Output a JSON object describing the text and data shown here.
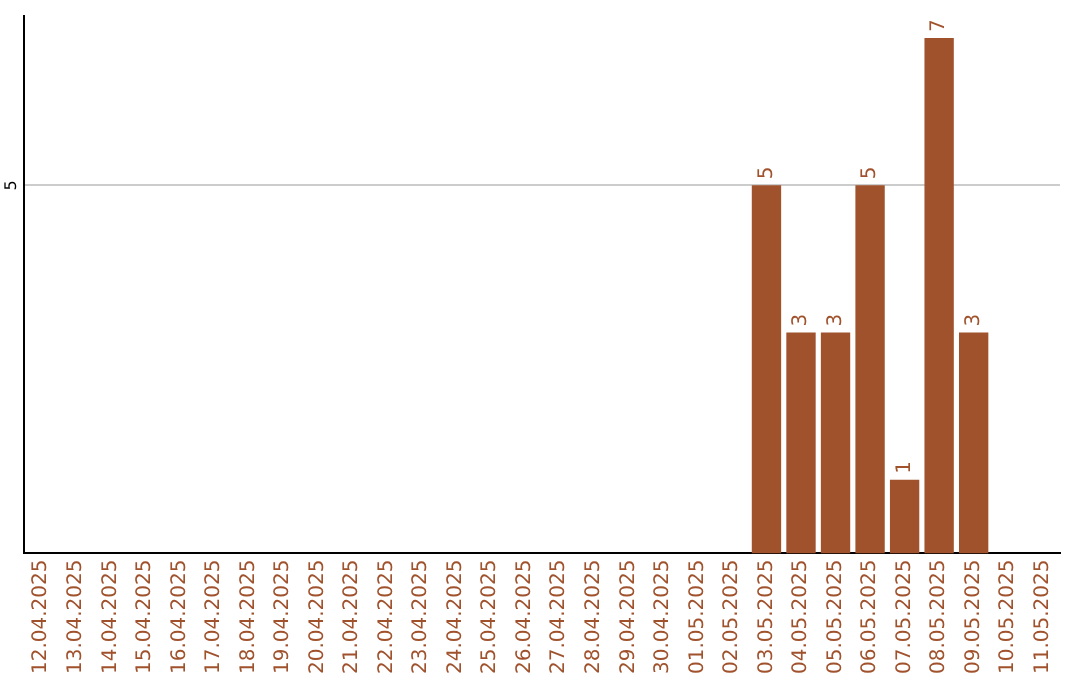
{
  "chart_data": {
    "type": "bar",
    "categories": [
      "12.04.2025",
      "13.04.2025",
      "14.04.2025",
      "15.04.2025",
      "16.04.2025",
      "17.04.2025",
      "18.04.2025",
      "19.04.2025",
      "20.04.2025",
      "21.04.2025",
      "22.04.2025",
      "23.04.2025",
      "24.04.2025",
      "25.04.2025",
      "26.04.2025",
      "27.04.2025",
      "28.04.2025",
      "29.04.2025",
      "30.04.2025",
      "01.05.2025",
      "02.05.2025",
      "03.05.2025",
      "04.05.2025",
      "05.05.2025",
      "06.05.2025",
      "07.05.2025",
      "08.05.2025",
      "09.05.2025",
      "10.05.2025",
      "11.05.2025"
    ],
    "values": [
      null,
      null,
      null,
      null,
      null,
      null,
      null,
      null,
      null,
      null,
      null,
      null,
      null,
      null,
      null,
      null,
      null,
      null,
      null,
      null,
      null,
      5,
      3,
      3,
      5,
      1,
      7,
      3,
      null,
      null
    ],
    "value_labels": [
      null,
      null,
      null,
      null,
      null,
      null,
      null,
      null,
      null,
      null,
      null,
      null,
      null,
      null,
      null,
      null,
      null,
      null,
      null,
      null,
      null,
      "5",
      "3",
      "3",
      "5",
      "1",
      "7",
      "3",
      null,
      null
    ],
    "color": "#a0522d",
    "ylim": [
      0,
      7.3
    ],
    "yticks": [
      5
    ],
    "grid": "y",
    "legend": false
  }
}
